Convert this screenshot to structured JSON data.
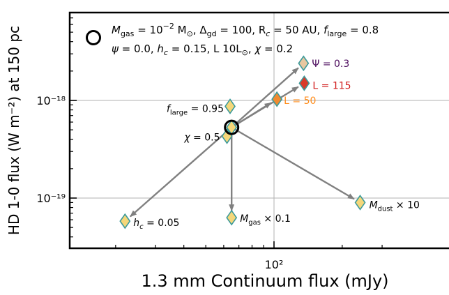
{
  "chart_data": {
    "type": "scatter",
    "xlabel": "1.3 mm Continuum flux (mJy)",
    "ylabel": "HD 1-0 flux (W m⁻²) at 150 pc",
    "x_scale": "log",
    "y_scale": "log",
    "x_ticks": [
      {
        "value": 100,
        "label": "10²"
      }
    ],
    "y_ticks": [
      {
        "value": 1e-19,
        "label": "10⁻¹⁹"
      },
      {
        "value": 1e-18,
        "label": "10⁻¹⁸"
      }
    ],
    "grid": true,
    "legend": {
      "location": "top-left",
      "line1": "M_gas = 10⁻² M☉,  Δgd = 100,  Rc = 50 AU,  f_large = 0.8",
      "line2": "ψ = 0.0,  hc = 0.15,  L  10L☉,  χ = 0.2"
    },
    "reference": {
      "x": 65,
      "y": 5.3e-19
    },
    "points": [
      {
        "label": "Ψ = 0.3",
        "x": 135,
        "y": 2.4e-18,
        "fill": "#e8c8a0",
        "label_color": "#4b0a5c",
        "arrow": true
      },
      {
        "label": "L = 115",
        "x": 136,
        "y": 1.5e-18,
        "fill": "#d93a2a",
        "label_color": "#d11c1c",
        "arrow": true
      },
      {
        "label": "L = 50",
        "x": 103,
        "y": 1.03e-18,
        "fill": "#f08a30",
        "label_color": "#ff8c1a",
        "arrow": true
      },
      {
        "label": "f_large = 0.95",
        "x": 64,
        "y": 8.7e-19,
        "fill": "#f5d77a",
        "label_color": "#000000",
        "arrow": false
      },
      {
        "label": "χ = 0.5",
        "x": 62,
        "y": 4.3e-19,
        "fill": "#f5d77a",
        "label_color": "#000000",
        "arrow": false
      },
      {
        "label": "hc = 0.05",
        "x": 22,
        "y": 5.8e-20,
        "fill": "#f5d77a",
        "label_color": "#000000",
        "arrow": true
      },
      {
        "label": "M_gas × 0.1",
        "x": 65,
        "y": 6.3e-20,
        "fill": "#f5d77a",
        "label_color": "#000000",
        "arrow": true
      },
      {
        "label": "M_dust × 10",
        "x": 240,
        "y": 9e-20,
        "fill": "#f5d77a",
        "label_color": "#000000",
        "arrow": true
      }
    ]
  }
}
